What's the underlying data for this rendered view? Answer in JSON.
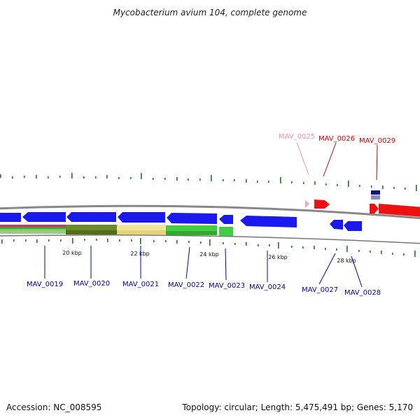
{
  "title": "Mycobacterium avium 104, complete genome",
  "footer": {
    "accession": "Accession: NC_008595",
    "info": "Topology: circular; Length: 5,475,491 bp; Genes: 5,170"
  },
  "colors": {
    "gene_blue": "#1a1aee",
    "gene_red": "#ee1111",
    "gene_pink": "#f4a0c8",
    "label_blue": "#0000aa",
    "label_red": "#cc0000",
    "label_pink": "#f08cbc",
    "tick_green": "#1e7a1e",
    "backbone": "#888888"
  },
  "scale_labels": [
    {
      "kbp": 20,
      "text": "20 kbp"
    },
    {
      "kbp": 22,
      "text": "22 kbp"
    },
    {
      "kbp": 24,
      "text": "24 kbp"
    },
    {
      "kbp": 26,
      "text": "26 kbp"
    },
    {
      "kbp": 28,
      "text": "28 kbp"
    }
  ],
  "genes": [
    {
      "id": "MAV_0019",
      "label": "MAV_0019",
      "strand": "minus",
      "color": "blue",
      "track": "below"
    },
    {
      "id": "MAV_0020",
      "label": "MAV_0020",
      "strand": "minus",
      "color": "blue",
      "track": "below"
    },
    {
      "id": "MAV_0021",
      "label": "MAV_0021",
      "strand": "minus",
      "color": "blue",
      "track": "below"
    },
    {
      "id": "MAV_0022",
      "label": "MAV_0022",
      "strand": "minus",
      "color": "blue",
      "track": "below"
    },
    {
      "id": "MAV_0023",
      "label": "MAV_0023",
      "strand": "minus",
      "color": "blue",
      "track": "below"
    },
    {
      "id": "MAV_0024",
      "label": "MAV_0024",
      "strand": "minus",
      "color": "blue",
      "track": "below"
    },
    {
      "id": "MAV_0025",
      "label": "MAV_0025",
      "strand": "plus",
      "color": "pink",
      "track": "above"
    },
    {
      "id": "MAV_0026",
      "label": "MAV_0026",
      "strand": "plus",
      "color": "red",
      "track": "above"
    },
    {
      "id": "MAV_0027",
      "label": "MAV_0027",
      "strand": "minus",
      "color": "blue",
      "track": "below"
    },
    {
      "id": "MAV_0028",
      "label": "MAV_0028",
      "strand": "minus",
      "color": "blue",
      "track": "below"
    },
    {
      "id": "MAV_0029",
      "label": "MAV_0029",
      "strand": "plus",
      "color": "red",
      "track": "above"
    }
  ]
}
